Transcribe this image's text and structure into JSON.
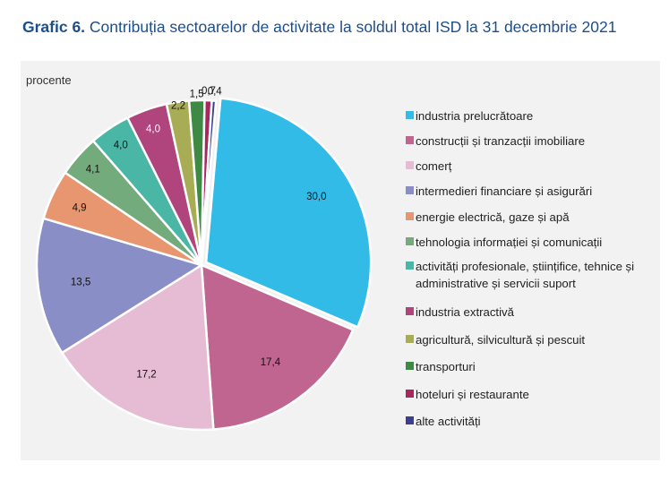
{
  "header": {
    "label": "Grafic 6.",
    "text": "Contribuția sectoarelor de activitate la soldul total ISD la 31 decembrie 2021"
  },
  "unit_label": "procente",
  "chart_data": {
    "type": "pie",
    "title": "Grafic 6. Contribuția sectoarelor de activitate la soldul total ISD la 31 decembrie 2021",
    "unit": "procente",
    "legend_position": "right",
    "slices": [
      {
        "name": "industria prelucrătoare",
        "value": 30.0,
        "label": "30,0",
        "color": "#33bbe8"
      },
      {
        "name": "construcții și tranzacții imobiliare",
        "value": 17.4,
        "label": "17,4",
        "color": "#c06590"
      },
      {
        "name": "comerț",
        "value": 17.2,
        "label": "17,2",
        "color": "#e6bcd4"
      },
      {
        "name": "intermedieri financiare și asigurări",
        "value": 13.5,
        "label": "13,5",
        "color": "#8a8ec6"
      },
      {
        "name": "energie electrică, gaze și apă",
        "value": 4.9,
        "label": "4,9",
        "color": "#e8966f"
      },
      {
        "name": "tehnologia informației și comunicații",
        "value": 4.1,
        "label": "4,1",
        "color": "#74ab7c"
      },
      {
        "name": "activități profesionale, științifice, tehnice și administrative și servicii suport",
        "value": 4.0,
        "label": "4,0",
        "color": "#49b6a6"
      },
      {
        "name": "industria extractivă",
        "value": 4.0,
        "label": "4,0",
        "color": "#b0457e"
      },
      {
        "name": "agricultură, silvicultură și pescuit",
        "value": 2.2,
        "label": "2,2",
        "color": "#a8ad55"
      },
      {
        "name": "transporturi",
        "value": 1.5,
        "label": "1,5",
        "color": "#3e8a45"
      },
      {
        "name": "hoteluri și restaurante",
        "value": 0.7,
        "label": "0,7",
        "color": "#a8275e"
      },
      {
        "name": "alte activități",
        "value": 0.4,
        "label": "0,4",
        "color": "#3b3f8f"
      }
    ]
  }
}
